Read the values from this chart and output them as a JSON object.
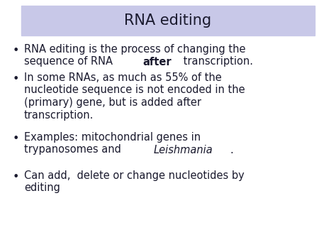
{
  "title": "RNA editing",
  "title_bg_color": "#c8c8e8",
  "title_font_size": 15,
  "bg_color": "#ffffff",
  "text_color": "#1a1a2e",
  "bullet_points": [
    {
      "lines": [
        [
          {
            "text": "RNA editing is the process of changing the",
            "bold": false,
            "italic": false
          }
        ],
        [
          {
            "text": "sequence of RNA ",
            "bold": false,
            "italic": false
          },
          {
            "text": "after",
            "bold": true,
            "italic": false
          },
          {
            "text": " transcription.",
            "bold": false,
            "italic": false
          }
        ]
      ]
    },
    {
      "lines": [
        [
          {
            "text": "In some RNAs, as much as 55% of the",
            "bold": false,
            "italic": false
          }
        ],
        [
          {
            "text": "nucleotide sequence is not encoded in the",
            "bold": false,
            "italic": false
          }
        ],
        [
          {
            "text": "(primary) gene, but is added after",
            "bold": false,
            "italic": false
          }
        ],
        [
          {
            "text": "transcription.",
            "bold": false,
            "italic": false
          }
        ]
      ]
    },
    {
      "lines": [
        [
          {
            "text": "Examples: mitochondrial genes in",
            "bold": false,
            "italic": false
          }
        ],
        [
          {
            "text": "trypanosomes and ",
            "bold": false,
            "italic": false
          },
          {
            "text": "Leishmania",
            "bold": false,
            "italic": true
          },
          {
            "text": ".",
            "bold": false,
            "italic": false
          }
        ]
      ]
    },
    {
      "lines": [
        [
          {
            "text": "Can add,  delete or change nucleotides by",
            "bold": false,
            "italic": false
          }
        ],
        [
          {
            "text": "editing",
            "bold": false,
            "italic": false
          }
        ]
      ]
    }
  ],
  "bullet_char": "•",
  "font_size": 10.5,
  "bullet_color": "#1a1a2e",
  "fig_width": 4.74,
  "fig_height": 3.55,
  "dpi": 100
}
